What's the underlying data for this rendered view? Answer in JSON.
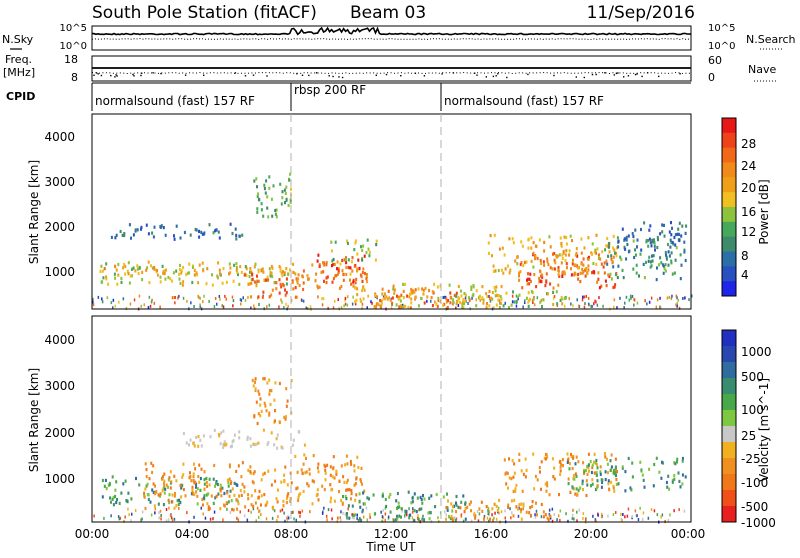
{
  "header": {
    "station": "South Pole Station (fitACF)",
    "beam": "Beam 03",
    "date": "11/Sep/2016"
  },
  "strips": {
    "noise": {
      "left_label": "N.Sky",
      "right_label": "N.Search",
      "left_ticks": [
        "10^5",
        "10^0"
      ],
      "right_ticks": [
        "10^5",
        "10^0"
      ]
    },
    "freq": {
      "left_label_1": "Freq.",
      "left_label_2": "[MHz]",
      "right_label": "Nave",
      "left_ticks": [
        "18",
        "8"
      ],
      "right_ticks": [
        "60",
        "0"
      ]
    },
    "cpid": {
      "label": "CPID",
      "segments": [
        {
          "text": "normalsound (fast) 157 RF",
          "start": "00:00",
          "end": "08:00"
        },
        {
          "text": "rbsp 200 RF",
          "start": "08:00",
          "end": "14:00"
        },
        {
          "text": "normalsound (fast) 157 RF",
          "start": "14:00",
          "end": "24:00"
        }
      ]
    }
  },
  "colors": {
    "power_scale": [
      "#1e24e8",
      "#2850c0",
      "#2c6ea8",
      "#3f8a6a",
      "#46a85a",
      "#8cc23c",
      "#f0c020",
      "#f0a018",
      "#f08a18",
      "#f06818",
      "#f04218",
      "#e81818"
    ],
    "velocity_scale": [
      "#2030c0",
      "#2848b0",
      "#2f6ca0",
      "#3a8c70",
      "#49a84a",
      "#7dc840",
      "#c8c8c8",
      "#f0b020",
      "#f09020",
      "#f07818",
      "#f05018",
      "#e82020"
    ],
    "grid": "#b0b0b0"
  },
  "chart_data": [
    {
      "type": "heatmap",
      "title": "",
      "xlabel": "",
      "ylabel": "Slant Range [km]",
      "x_ticks": [
        "00:00",
        "04:00",
        "08:00",
        "12:00",
        "16:00",
        "20:00",
        "00:00"
      ],
      "y_ticks": [
        "1000",
        "2000",
        "3000",
        "4000"
      ],
      "ylim": [
        200,
        4600
      ],
      "colorbar": {
        "label": "Power [dB]",
        "ticks": [
          "4",
          "8",
          "12",
          "16",
          "20",
          "24",
          "28"
        ],
        "range": [
          0,
          32
        ]
      },
      "regions": [
        {
          "t0": 0.3,
          "t1": 8.0,
          "r0": 750,
          "r1": 1300,
          "v": 16
        },
        {
          "t0": 0.3,
          "t1": 7.8,
          "r0": 1000,
          "r1": 1200,
          "v": 22
        },
        {
          "t0": 6.0,
          "t1": 8.2,
          "r0": 480,
          "r1": 1100,
          "v": 26
        },
        {
          "t0": 8.0,
          "t1": 11.0,
          "r0": 650,
          "r1": 1300,
          "v": 23
        },
        {
          "t0": 9.0,
          "t1": 11.0,
          "r0": 800,
          "r1": 1500,
          "v": 28
        },
        {
          "t0": 9.5,
          "t1": 11.4,
          "r0": 1300,
          "r1": 1800,
          "v": 14
        },
        {
          "t0": 0.6,
          "t1": 6.0,
          "r0": 1800,
          "r1": 2150,
          "v": 6
        },
        {
          "t0": 6.4,
          "t1": 8.0,
          "r0": 2300,
          "r1": 3300,
          "v": 12
        },
        {
          "t0": 11.2,
          "t1": 14.6,
          "r0": 250,
          "r1": 700,
          "v": 26
        },
        {
          "t0": 10.5,
          "t1": 16.5,
          "r0": 250,
          "r1": 800,
          "v": 18
        },
        {
          "t0": 14.5,
          "t1": 19.0,
          "r0": 250,
          "r1": 650,
          "v": 16
        },
        {
          "t0": 17.0,
          "t1": 21.0,
          "r0": 700,
          "r1": 1550,
          "v": 27
        },
        {
          "t0": 15.8,
          "t1": 21.0,
          "r0": 1000,
          "r1": 1900,
          "v": 20
        },
        {
          "t0": 20.5,
          "t1": 23.8,
          "r0": 900,
          "r1": 1800,
          "v": 10
        },
        {
          "t0": 21.0,
          "t1": 23.8,
          "r0": 1500,
          "r1": 2200,
          "v": 6
        }
      ]
    },
    {
      "type": "heatmap",
      "title": "",
      "xlabel": "Time UT",
      "ylabel": "Slant Range [km]",
      "x_ticks": [
        "00:00",
        "04:00",
        "08:00",
        "12:00",
        "16:00",
        "20:00",
        "00:00"
      ],
      "y_ticks": [
        "1000",
        "2000",
        "3000",
        "4000"
      ],
      "ylim": [
        200,
        4600
      ],
      "colorbar": {
        "label": "Velocity [m s^-1]",
        "ticks": [
          "1000",
          "500",
          "100",
          "25",
          "-25",
          "-100",
          "-500",
          "-1000"
        ]
      },
      "regions": [
        {
          "t0": 0.3,
          "t1": 6.0,
          "r0": 600,
          "r1": 1200,
          "v": "green"
        },
        {
          "t0": 2.0,
          "t1": 8.0,
          "r0": 500,
          "r1": 1500,
          "v": "orange"
        },
        {
          "t0": 8.0,
          "t1": 11.0,
          "r0": 600,
          "r1": 1700,
          "v": "orange"
        },
        {
          "t0": 3.5,
          "t1": 8.5,
          "r0": 1800,
          "r1": 2200,
          "v": "gray"
        },
        {
          "t0": 6.4,
          "t1": 8.0,
          "r0": 2300,
          "r1": 3300,
          "v": "orange"
        },
        {
          "t0": 10.0,
          "t1": 15.0,
          "r0": 250,
          "r1": 900,
          "v": "green"
        },
        {
          "t0": 14.0,
          "t1": 18.5,
          "r0": 250,
          "r1": 700,
          "v": "orange"
        },
        {
          "t0": 16.5,
          "t1": 21.0,
          "r0": 800,
          "r1": 1700,
          "v": "orange"
        },
        {
          "t0": 19.0,
          "t1": 23.8,
          "r0": 900,
          "r1": 1600,
          "v": "green"
        }
      ]
    }
  ]
}
